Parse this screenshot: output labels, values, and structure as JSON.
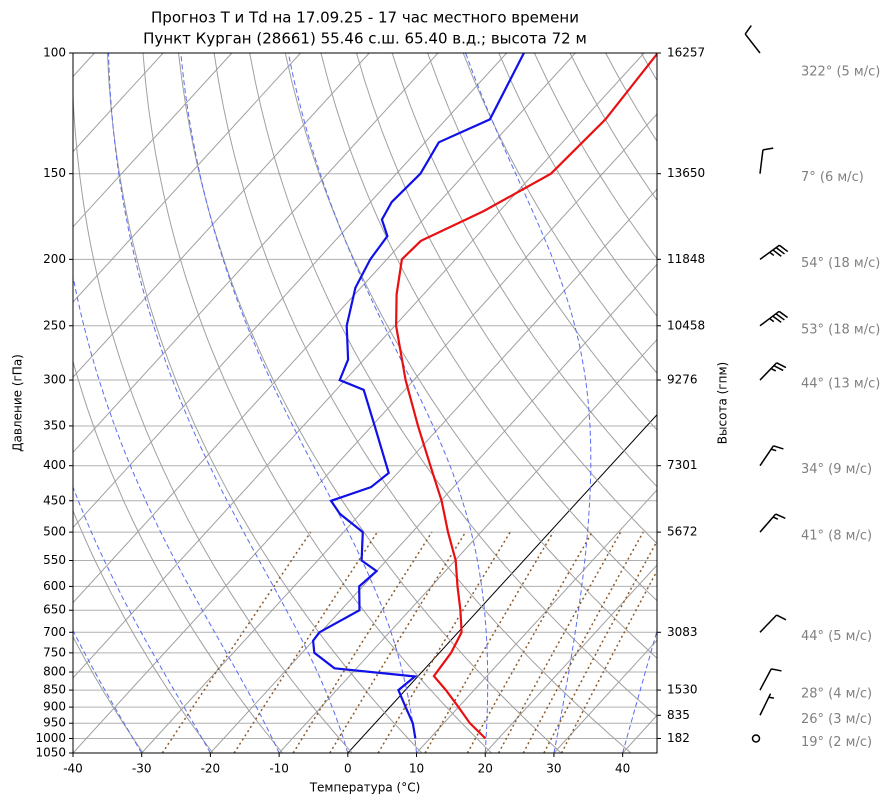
{
  "chart_data": {
    "type": "skewt",
    "title": "Прогноз T и Td на 17.09.25 - 17 час местного времени",
    "subtitle": "Пункт Курган (28661) 55.46 с.ш. 65.40 в.д.; высота 72 м",
    "x_label": "Температура (°C)",
    "y_label": "Давление (гПа)",
    "y2_label": "Высота (гпм)",
    "xlim": [
      -40,
      45
    ],
    "xticks": [
      -40,
      -30,
      -20,
      -10,
      0,
      10,
      20,
      30,
      40
    ],
    "ylim": [
      1050,
      100
    ],
    "log_y": true,
    "yticks": [
      100,
      150,
      200,
      250,
      300,
      350,
      400,
      450,
      500,
      550,
      600,
      650,
      700,
      750,
      800,
      850,
      900,
      950,
      1000,
      1050
    ],
    "grid": true,
    "height_ticks": {
      "pressure": [
        100,
        150,
        200,
        250,
        300,
        400,
        500,
        700,
        850,
        925,
        1000
      ],
      "height": [
        16257,
        13650,
        11848,
        10458,
        9276,
        7301,
        5672,
        3083,
        1530,
        835,
        182
      ]
    },
    "series": [
      {
        "color": "#e81010",
        "pressure": [
          1000,
          950,
          900,
          850,
          811,
          750,
          700,
          650,
          600,
          550,
          500,
          450,
          400,
          350,
          300,
          250,
          225,
          200,
          188,
          170,
          150,
          125,
          100
        ],
        "values": [
          18.1,
          13.8,
          10.0,
          5.9,
          2.3,
          1.7,
          0.5,
          -2.6,
          -6.2,
          -9.9,
          -14.8,
          -19.9,
          -26.2,
          -33.3,
          -41.2,
          -49.8,
          -53.9,
          -57.8,
          -57.5,
          -52.3,
          -47.5,
          -46.8,
          -48
        ]
      },
      {
        "color": "#1010e8",
        "pressure": [
          1000,
          950,
          900,
          850,
          812,
          790,
          750,
          720,
          700,
          650,
          600,
          570,
          550,
          500,
          470,
          450,
          430,
          410,
          350,
          310,
          300,
          280,
          250,
          220,
          200,
          185,
          175,
          165,
          150,
          135,
          125,
          100
        ],
        "values": [
          7.9,
          5.5,
          2.3,
          -1.0,
          -0.4,
          -13.2,
          -18.2,
          -20,
          -20.2,
          -17.3,
          -20.5,
          -20,
          -23.6,
          -27.2,
          -33,
          -36,
          -32,
          -31.3,
          -39.6,
          -46,
          -50.8,
          -52.3,
          -57,
          -60.8,
          -62.4,
          -63,
          -66,
          -66.9,
          -66.5,
          -68,
          -63.6,
          -67.5
        ]
      }
    ],
    "wind": {
      "pressure": [
        100,
        150,
        200,
        250,
        300,
        400,
        500,
        700,
        850,
        925,
        1000
      ],
      "direction": [
        322,
        7,
        54,
        53,
        44,
        34,
        41,
        44,
        28,
        26,
        19
      ],
      "speed": [
        5,
        6,
        18,
        18,
        13,
        9,
        8,
        5,
        4,
        3,
        2
      ],
      "labels": [
        "322° (5 м/с)",
        "7° (6 м/с)",
        "54° (18 м/с)",
        "53° (18 м/с)",
        "44° (13 м/с)",
        "34° (9 м/с)",
        "41° (8 м/с)",
        "44° (5 м/с)",
        "28° (4 м/с)",
        "26° (3 м/с)",
        "19° (2 м/с)"
      ]
    }
  }
}
